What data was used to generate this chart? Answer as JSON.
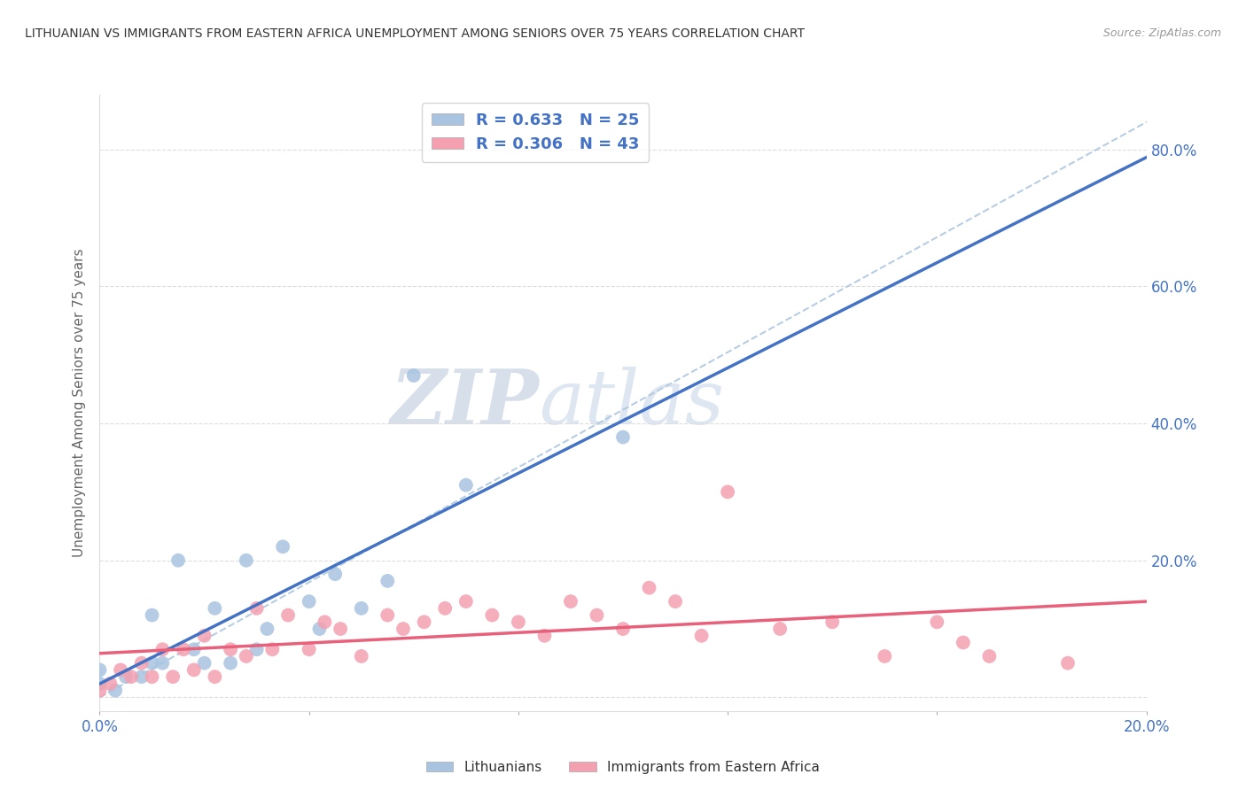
{
  "title": "LITHUANIAN VS IMMIGRANTS FROM EASTERN AFRICA UNEMPLOYMENT AMONG SENIORS OVER 75 YEARS CORRELATION CHART",
  "source": "Source: ZipAtlas.com",
  "ylabel": "Unemployment Among Seniors over 75 years",
  "xlim": [
    0.0,
    0.2
  ],
  "ylim": [
    -0.02,
    0.88
  ],
  "y_ticks": [
    0.0,
    0.2,
    0.4,
    0.6,
    0.8
  ],
  "y_tick_labels_right": [
    "",
    "20.0%",
    "40.0%",
    "60.0%",
    "80.0%"
  ],
  "x_ticks": [
    0.0,
    0.04,
    0.08,
    0.12,
    0.16,
    0.2
  ],
  "blue_R": 0.633,
  "blue_N": 25,
  "pink_R": 0.306,
  "pink_N": 43,
  "blue_color": "#a8c4e0",
  "pink_color": "#f4a0b0",
  "blue_line_color": "#4472c4",
  "pink_line_color": "#e8607a",
  "diag_line_color": "#b0c8e0",
  "watermark_zip": "ZIP",
  "watermark_atlas": "atlas",
  "blue_points_x": [
    0.0,
    0.0,
    0.003,
    0.005,
    0.008,
    0.01,
    0.01,
    0.012,
    0.015,
    0.018,
    0.02,
    0.022,
    0.025,
    0.028,
    0.03,
    0.032,
    0.035,
    0.04,
    0.042,
    0.045,
    0.05,
    0.055,
    0.06,
    0.07,
    0.1
  ],
  "blue_points_y": [
    0.02,
    0.04,
    0.01,
    0.03,
    0.03,
    0.05,
    0.12,
    0.05,
    0.2,
    0.07,
    0.05,
    0.13,
    0.05,
    0.2,
    0.07,
    0.1,
    0.22,
    0.14,
    0.1,
    0.18,
    0.13,
    0.17,
    0.47,
    0.31,
    0.38
  ],
  "pink_points_x": [
    0.0,
    0.002,
    0.004,
    0.006,
    0.008,
    0.01,
    0.012,
    0.014,
    0.016,
    0.018,
    0.02,
    0.022,
    0.025,
    0.028,
    0.03,
    0.033,
    0.036,
    0.04,
    0.043,
    0.046,
    0.05,
    0.055,
    0.058,
    0.062,
    0.066,
    0.07,
    0.075,
    0.08,
    0.085,
    0.09,
    0.095,
    0.1,
    0.105,
    0.11,
    0.115,
    0.12,
    0.13,
    0.14,
    0.15,
    0.16,
    0.165,
    0.17,
    0.185
  ],
  "pink_points_y": [
    0.01,
    0.02,
    0.04,
    0.03,
    0.05,
    0.03,
    0.07,
    0.03,
    0.07,
    0.04,
    0.09,
    0.03,
    0.07,
    0.06,
    0.13,
    0.07,
    0.12,
    0.07,
    0.11,
    0.1,
    0.06,
    0.12,
    0.1,
    0.11,
    0.13,
    0.14,
    0.12,
    0.11,
    0.09,
    0.14,
    0.12,
    0.1,
    0.16,
    0.14,
    0.09,
    0.3,
    0.1,
    0.11,
    0.06,
    0.11,
    0.08,
    0.06,
    0.05
  ]
}
